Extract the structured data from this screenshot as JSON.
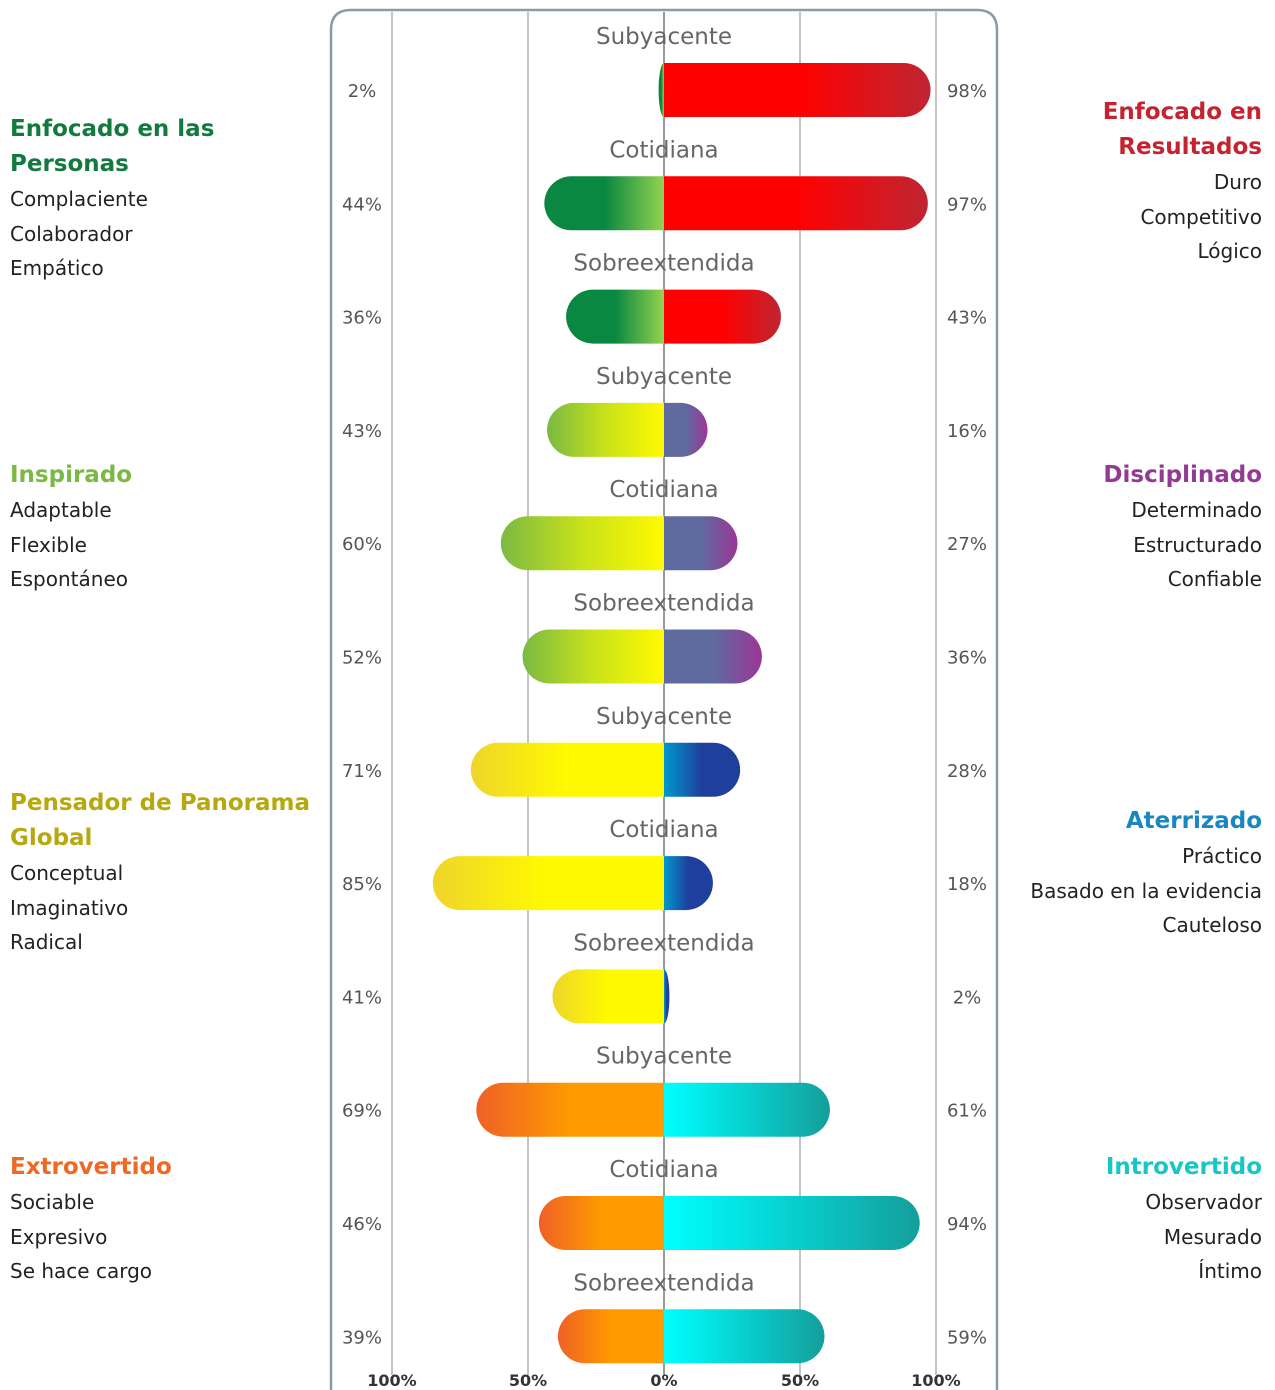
{
  "left_preferences": [
    {
      "title": "Enfocado en las Personas",
      "color": "#137a3e",
      "traits": [
        "Complaciente",
        "Colaborador",
        "Empático"
      ]
    },
    {
      "title": "Inspirado",
      "color": "#7ab943",
      "traits": [
        "Adaptable",
        "Flexible",
        "Espontáneo"
      ]
    },
    {
      "title": "Pensador de Panorama Global",
      "color": "#b8a80f",
      "traits": [
        "Conceptual",
        "Imaginativo",
        "Radical"
      ]
    },
    {
      "title": "Extrovertido",
      "color": "#ee6a24",
      "traits": [
        "Sociable",
        "Expresivo",
        "Se hace cargo"
      ]
    }
  ],
  "right_preferences": [
    {
      "title": "Enfocado en Resultados",
      "color": "#c4232f",
      "traits": [
        "Duro",
        "Competitivo",
        "Lógico"
      ]
    },
    {
      "title": "Disciplinado",
      "color": "#933a92",
      "traits": [
        "Determinado",
        "Estructurado",
        "Confiable"
      ]
    },
    {
      "title": "Aterrizado",
      "color": "#1a86c2",
      "traits": [
        "Práctico",
        "Basado en la evidencia",
        "Cauteloso"
      ]
    },
    {
      "title": "Introvertido",
      "color": "#16c7c3",
      "traits": [
        "Observador",
        "Mesurado",
        "Íntimo"
      ]
    }
  ],
  "chart_data": {
    "type": "bar",
    "orientation": "diverging-horizontal",
    "x_ticks": [
      "100%",
      "50%",
      "0%",
      "50%",
      "100%"
    ],
    "xlim_left": [
      0,
      100
    ],
    "xlim_right": [
      0,
      100
    ],
    "grid": true,
    "groups": [
      {
        "left_gradient": [
          "#0a8740",
          "#0a8740",
          "#93d34f"
        ],
        "right_gradient": [
          "#ff0000",
          "#ff0000",
          "#bf2532"
        ],
        "rows": [
          {
            "label": "Subyacente",
            "left": 2,
            "right": 98,
            "left_text": "2%",
            "right_text": "98%"
          },
          {
            "label": "Cotidiana",
            "left": 44,
            "right": 97,
            "left_text": "44%",
            "right_text": "97%"
          },
          {
            "label": "Sobreextendida",
            "left": 36,
            "right": 43,
            "left_text": "36%",
            "right_text": "43%"
          }
        ]
      },
      {
        "left_gradient": [
          "#7ab943",
          "#c9e21a",
          "#fffa00"
        ],
        "right_gradient": [
          "#5f6a9f",
          "#5f6a9f",
          "#9a3796"
        ],
        "rows": [
          {
            "label": "Subyacente",
            "left": 43,
            "right": 16,
            "left_text": "43%",
            "right_text": "16%"
          },
          {
            "label": "Cotidiana",
            "left": 60,
            "right": 27,
            "left_text": "60%",
            "right_text": "27%"
          },
          {
            "label": "Sobreextendida",
            "left": 52,
            "right": 36,
            "left_text": "52%",
            "right_text": "36%"
          }
        ]
      },
      {
        "left_gradient": [
          "#eed52b",
          "#fffa00",
          "#fffa00"
        ],
        "right_gradient": [
          "#0098cc",
          "#1f3f9d",
          "#1f3f9d"
        ],
        "rows": [
          {
            "label": "Subyacente",
            "left": 71,
            "right": 28,
            "left_text": "71%",
            "right_text": "28%"
          },
          {
            "label": "Cotidiana",
            "left": 85,
            "right": 18,
            "left_text": "85%",
            "right_text": "18%"
          },
          {
            "label": "Sobreextendida",
            "left": 41,
            "right": 2,
            "left_text": "41%",
            "right_text": "2%"
          }
        ]
      },
      {
        "left_gradient": [
          "#ee6126",
          "#ff9a00",
          "#ff9a00"
        ],
        "right_gradient": [
          "#00ffff",
          "#08cfcf",
          "#149e9a"
        ],
        "rows": [
          {
            "label": "Subyacente",
            "left": 69,
            "right": 61,
            "left_text": "69%",
            "right_text": "61%"
          },
          {
            "label": "Cotidiana",
            "left": 46,
            "right": 94,
            "left_text": "46%",
            "right_text": "94%"
          },
          {
            "label": "Sobreextendida",
            "left": 39,
            "right": 59,
            "left_text": "39%",
            "right_text": "59%"
          }
        ]
      }
    ]
  }
}
